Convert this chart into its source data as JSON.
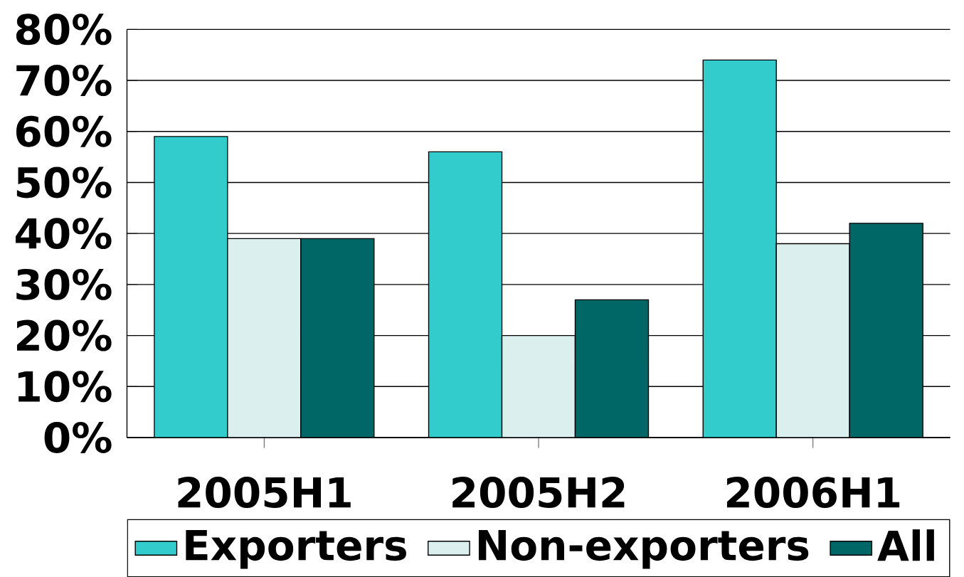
{
  "chart_data": {
    "type": "bar",
    "categories": [
      "2005H1",
      "2005H2",
      "2006H1"
    ],
    "series": [
      {
        "name": "Exporters",
        "color": "#33cccc",
        "values": [
          59,
          56,
          74
        ]
      },
      {
        "name": "Non-exporters",
        "color": "#dcefef",
        "values": [
          39,
          20,
          38
        ]
      },
      {
        "name": "All",
        "color": "#006666",
        "values": [
          39,
          27,
          42
        ]
      }
    ],
    "ylim": [
      0,
      80
    ],
    "yticks": [
      {
        "value": 0,
        "label": "0%"
      },
      {
        "value": 10,
        "label": "10%"
      },
      {
        "value": 20,
        "label": "20%"
      },
      {
        "value": 30,
        "label": "30%"
      },
      {
        "value": 40,
        "label": "40%"
      },
      {
        "value": 50,
        "label": "50%"
      },
      {
        "value": 60,
        "label": "60%"
      },
      {
        "value": 70,
        "label": "70%"
      },
      {
        "value": 80,
        "label": "80%"
      }
    ],
    "grid": "y",
    "legend": "bottom"
  }
}
